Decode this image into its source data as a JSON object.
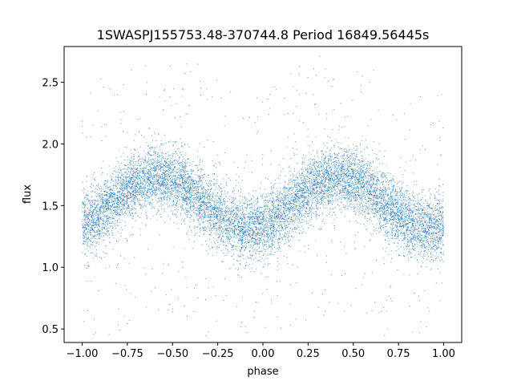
{
  "chart_data": {
    "type": "scatter",
    "title": "1SWASPJ155753.48-370744.8 Period 16849.56445s",
    "xlabel": "phase",
    "ylabel": "flux",
    "xlim": [
      -1.1,
      1.1
    ],
    "ylim": [
      0.39,
      2.79
    ],
    "xticks": [
      -1.0,
      -0.75,
      -0.5,
      -0.25,
      0.0,
      0.25,
      0.5,
      0.75,
      1.0
    ],
    "xtick_labels": [
      "−1.00",
      "−0.75",
      "−0.50",
      "−0.25",
      "0.00",
      "0.25",
      "0.50",
      "0.75",
      "1.00"
    ],
    "yticks": [
      0.5,
      1.0,
      1.5,
      2.0,
      2.5
    ],
    "ytick_labels": [
      "0.5",
      "1.0",
      "1.5",
      "2.0",
      "2.5"
    ],
    "grid": false,
    "marker_color": "#1f77b4",
    "light_curve_model": {
      "x_range": [
        -1.0,
        1.0
      ],
      "mean_flux": 1.52,
      "amplitude": 0.21,
      "maximum_phase": [
        -0.58,
        0.42
      ],
      "minimum_phase": [
        -0.08,
        0.92,
        -1.0
      ],
      "scatter_sigma": 0.13
    },
    "binned_trend": {
      "x": [
        -1.0,
        -0.9,
        -0.8,
        -0.7,
        -0.6,
        -0.5,
        -0.4,
        -0.3,
        -0.2,
        -0.1,
        0.0,
        0.1,
        0.2,
        0.3,
        0.4,
        0.5,
        0.6,
        0.7,
        0.8,
        0.9,
        1.0
      ],
      "y": [
        1.41,
        1.5,
        1.62,
        1.7,
        1.73,
        1.71,
        1.64,
        1.55,
        1.43,
        1.33,
        1.34,
        1.47,
        1.6,
        1.69,
        1.73,
        1.72,
        1.65,
        1.56,
        1.46,
        1.36,
        1.35
      ]
    }
  }
}
